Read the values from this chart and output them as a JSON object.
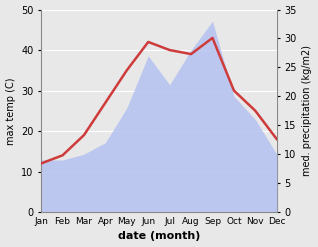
{
  "months": [
    "Jan",
    "Feb",
    "Mar",
    "Apr",
    "May",
    "Jun",
    "Jul",
    "Aug",
    "Sep",
    "Oct",
    "Nov",
    "Dec"
  ],
  "temp_max": [
    12,
    14,
    19,
    27,
    35,
    42,
    40,
    39,
    43,
    30,
    25,
    18
  ],
  "precip": [
    9,
    9,
    10,
    12,
    18,
    27,
    22,
    28,
    33,
    20,
    16,
    10
  ],
  "temp_color": "#cd3b3b",
  "precip_fill_color": "#b8c4f0",
  "left_ylabel": "max temp (C)",
  "right_ylabel": "med. precipitation (kg/m2)",
  "xlabel": "date (month)",
  "ylim_left": [
    0,
    50
  ],
  "ylim_right": [
    0,
    35
  ],
  "bg_color": "#e8e8e8",
  "grid_color": "#ffffff"
}
